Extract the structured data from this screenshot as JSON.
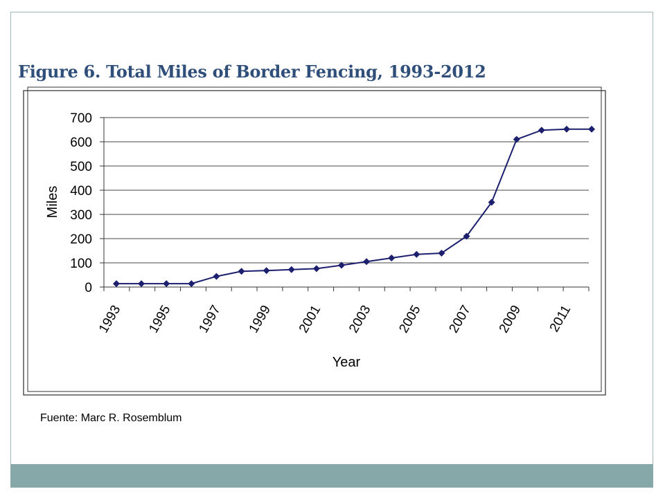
{
  "slide": {
    "title": "Figure 6. Total Miles of Border Fencing, 1993-2012",
    "source": "Fuente: Marc R. Rosemblum"
  },
  "colors": {
    "title": "#2f4f7a",
    "line": "#1b1f6e",
    "footer_band": "#87a8a9",
    "frame": "#9fb6b8"
  },
  "chart_data": {
    "type": "line",
    "title": "Figure 6. Total Miles of Border Fencing, 1993-2012",
    "xlabel": "Year",
    "ylabel": "Miles",
    "ylim": [
      0,
      700
    ],
    "yticks": [
      0,
      100,
      200,
      300,
      400,
      500,
      600,
      700
    ],
    "x_tick_labels": [
      "1993",
      "1995",
      "1997",
      "1999",
      "2001",
      "2003",
      "2005",
      "2007",
      "2009",
      "2011"
    ],
    "grid": "horizontal",
    "series": [
      {
        "x": [
          1993,
          1994,
          1995,
          1996,
          1997,
          1998,
          1999,
          2000,
          2001,
          2002,
          2003,
          2004,
          2005,
          2006,
          2007,
          2008,
          2009,
          2010,
          2011,
          2012
        ],
        "values": [
          14,
          14,
          14,
          14,
          44,
          65,
          68,
          72,
          76,
          90,
          105,
          120,
          135,
          140,
          210,
          350,
          610,
          648,
          652,
          652
        ]
      }
    ]
  }
}
